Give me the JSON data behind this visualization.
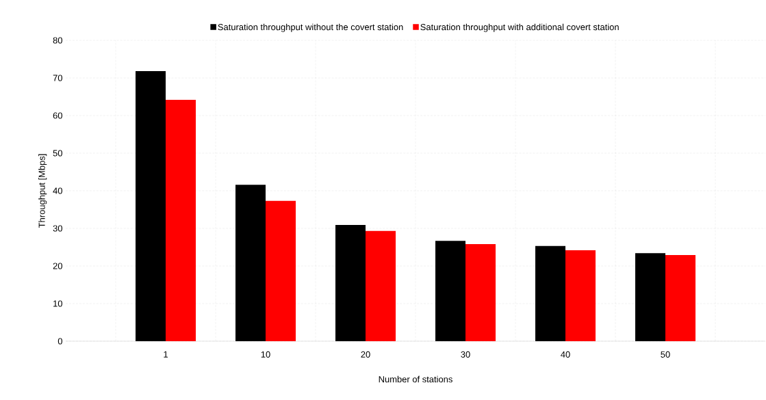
{
  "chart_data": {
    "type": "bar",
    "xlabel": "Number of stations",
    "ylabel": "Throughput [Mbps]",
    "categories": [
      "1",
      "10",
      "20",
      "30",
      "40",
      "50"
    ],
    "series": [
      {
        "name": "Saturation throughput without the covert station",
        "color": "#000000",
        "values": [
          71.8,
          41.6,
          30.9,
          26.7,
          25.3,
          23.4
        ]
      },
      {
        "name": "Saturation throughput with additional covert station",
        "color": "#ff0000",
        "values": [
          64.2,
          37.3,
          29.3,
          25.8,
          24.2,
          22.9
        ]
      }
    ],
    "ylim": [
      0,
      80
    ],
    "yticks": [
      0,
      10,
      20,
      30,
      40,
      50,
      60,
      70,
      80
    ],
    "grid": true,
    "legend": "top"
  }
}
